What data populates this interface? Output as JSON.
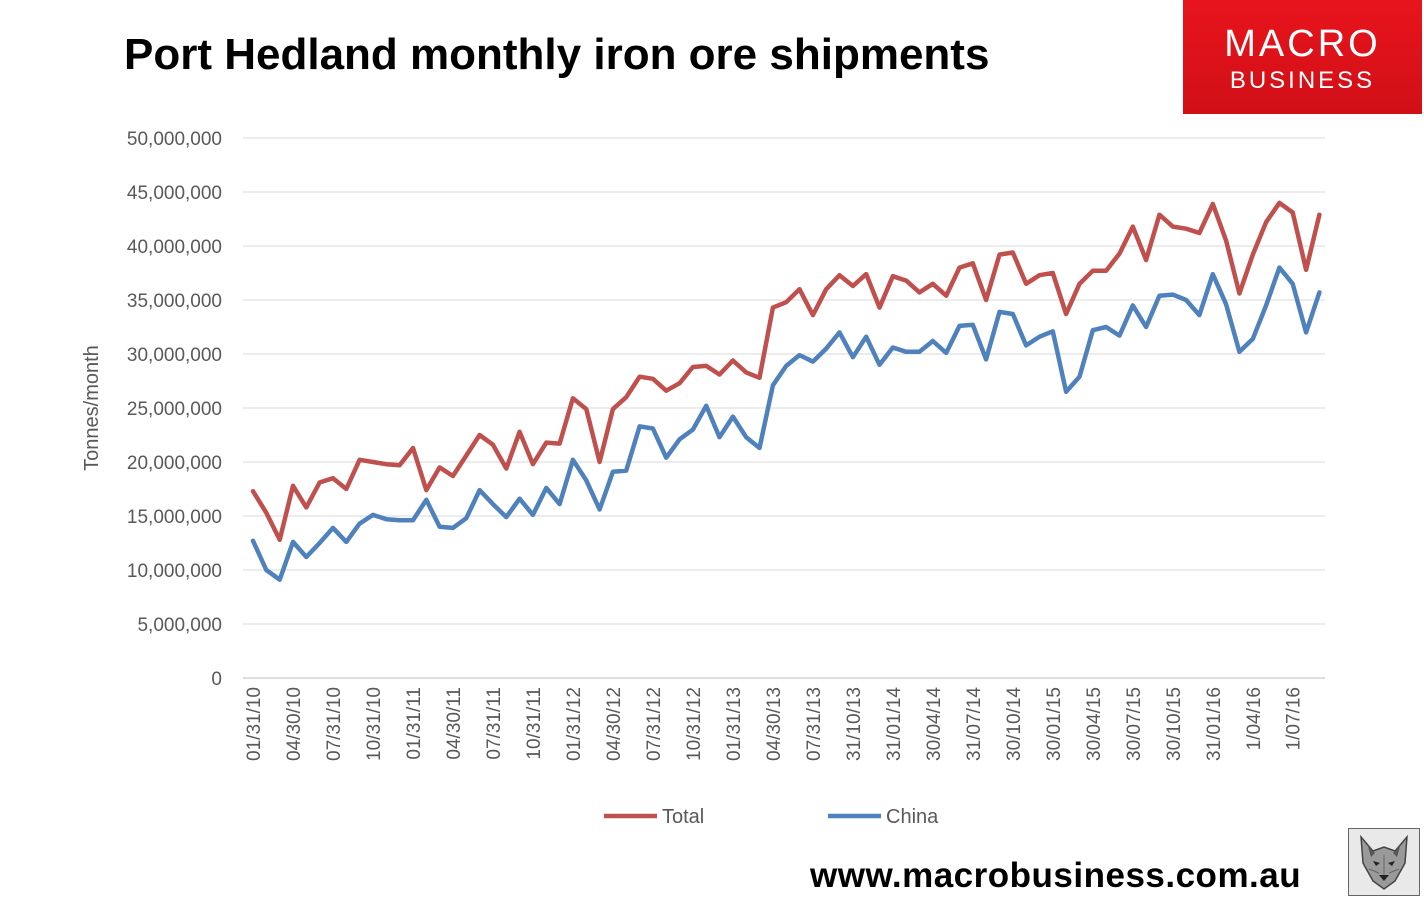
{
  "header": {
    "title": "Port Hedland monthly iron ore shipments"
  },
  "logo": {
    "line1": "MACRO",
    "line2": "BUSINESS"
  },
  "footer": {
    "url": "www.macrobusiness.com.au"
  },
  "colors": {
    "total": "#c0504d",
    "china": "#4f81bd",
    "grid": "#d9d9d9",
    "brand": "#e8141c"
  },
  "chart_data": {
    "type": "line",
    "title": "Port Hedland monthly iron ore shipments",
    "xlabel": "",
    "ylabel": "Tonnes/month",
    "ylim": [
      0,
      50000000
    ],
    "yticks": [
      0,
      5000000,
      10000000,
      15000000,
      20000000,
      25000000,
      30000000,
      35000000,
      40000000,
      45000000,
      50000000
    ],
    "ytick_labels": [
      "0",
      "5,000,000",
      "10,000,000",
      "15,000,000",
      "20,000,000",
      "25,000,000",
      "30,000,000",
      "35,000,000",
      "40,000,000",
      "45,000,000",
      "50,000,000"
    ],
    "xtick_labels": [
      "01/31/10",
      "04/30/10",
      "07/31/10",
      "10/31/10",
      "01/31/11",
      "04/30/11",
      "07/31/11",
      "10/31/11",
      "01/31/12",
      "04/30/12",
      "07/31/12",
      "10/31/12",
      "01/31/13",
      "04/30/13",
      "07/31/13",
      "31/10/13",
      "31/01/14",
      "30/04/14",
      "31/07/14",
      "30/10/14",
      "30/01/15",
      "30/04/15",
      "30/07/15",
      "30/10/15",
      "31/01/16",
      "1/04/16",
      "1/07/16"
    ],
    "xtick_every": 3,
    "grid": true,
    "legend_position": "bottom",
    "series": [
      {
        "name": "Total",
        "values": [
          17300000,
          15300000,
          12800000,
          17800000,
          15800000,
          18100000,
          18500000,
          17500000,
          20200000,
          20000000,
          19800000,
          19700000,
          21300000,
          17400000,
          19500000,
          18700000,
          20600000,
          22500000,
          21600000,
          19400000,
          22800000,
          19800000,
          21800000,
          21700000,
          25900000,
          24900000,
          20000000,
          24900000,
          26000000,
          27900000,
          27700000,
          26600000,
          27300000,
          28800000,
          28900000,
          28100000,
          29400000,
          28300000,
          27800000,
          34300000,
          34800000,
          36000000,
          33600000,
          36000000,
          37300000,
          36300000,
          37400000,
          34300000,
          37200000,
          36800000,
          35700000,
          36500000,
          35400000,
          38000000,
          38400000,
          35000000,
          39200000,
          39400000,
          36500000,
          37300000,
          37500000,
          33700000,
          36500000,
          37700000,
          37700000,
          39300000,
          41800000,
          38700000,
          42900000,
          41800000,
          41600000,
          41200000,
          43900000,
          40500000,
          35600000,
          39200000,
          42200000,
          44000000,
          43100000,
          37800000,
          42900000
        ]
      },
      {
        "name": "China",
        "values": [
          12700000,
          10000000,
          9100000,
          12600000,
          11200000,
          12500000,
          13900000,
          12600000,
          14300000,
          15100000,
          14700000,
          14600000,
          14600000,
          16500000,
          14000000,
          13900000,
          14800000,
          17400000,
          16100000,
          14900000,
          16600000,
          15100000,
          17600000,
          16100000,
          20200000,
          18300000,
          15600000,
          19100000,
          19200000,
          23300000,
          23100000,
          20400000,
          22100000,
          23000000,
          25200000,
          22300000,
          24200000,
          22300000,
          21300000,
          27100000,
          28900000,
          29900000,
          29300000,
          30500000,
          32000000,
          29700000,
          31600000,
          29000000,
          30600000,
          30200000,
          30200000,
          31200000,
          30100000,
          32600000,
          32700000,
          29500000,
          33900000,
          33700000,
          30800000,
          31600000,
          32100000,
          26500000,
          27900000,
          32200000,
          32500000,
          31700000,
          34500000,
          32500000,
          35400000,
          35500000,
          35000000,
          33600000,
          37400000,
          34600000,
          30200000,
          31400000,
          34500000,
          38000000,
          36500000,
          32000000,
          35700000
        ]
      }
    ]
  }
}
